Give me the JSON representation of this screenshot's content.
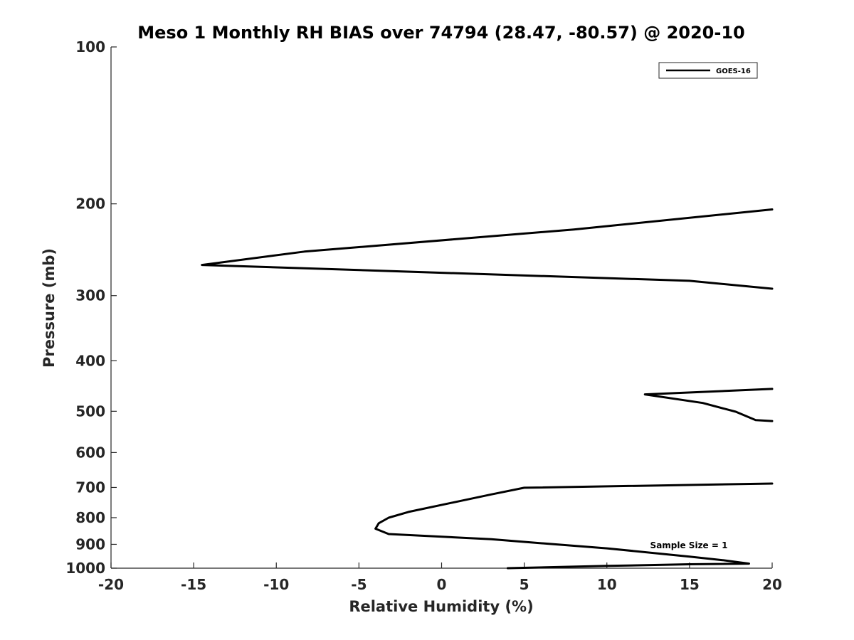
{
  "chart_data": {
    "type": "line",
    "title": "Meso 1 Monthly RH BIAS over 74794 (28.47, -80.57) @ 2020-10",
    "xlabel": "Relative Humidity (%)",
    "ylabel": "Pressure (mb)",
    "xlim": [
      -20,
      20
    ],
    "ylim": [
      100,
      1000
    ],
    "y_scale": "log",
    "y_reversed": true,
    "x_ticks": [
      -20,
      -15,
      -10,
      -5,
      0,
      5,
      10,
      15,
      20
    ],
    "x_tick_labels": [
      "-20",
      "-15",
      "-10",
      "-5",
      "0",
      "5",
      "10",
      "15",
      "20"
    ],
    "y_ticks": [
      100,
      200,
      300,
      400,
      500,
      600,
      700,
      800,
      900,
      1000
    ],
    "y_tick_labels": [
      "100",
      "200",
      "300",
      "400",
      "500",
      "600",
      "700",
      "800",
      "900",
      "1000"
    ],
    "grid": false,
    "legend_position": "top-right",
    "annotation": "Sample Size = 1",
    "color": "#000000",
    "series": [
      {
        "name": "GOES-16",
        "segments": [
          [
            {
              "x": 20,
              "y": 205
            },
            {
              "x": 8,
              "y": 224
            },
            {
              "x": -8.3,
              "y": 247
            },
            {
              "x": -14.5,
              "y": 262
            },
            {
              "x": 15,
              "y": 281
            },
            {
              "x": 20,
              "y": 291
            }
          ],
          [
            {
              "x": 20,
              "y": 453
            },
            {
              "x": 12.3,
              "y": 464
            },
            {
              "x": 15.8,
              "y": 482
            },
            {
              "x": 17.8,
              "y": 501
            },
            {
              "x": 19,
              "y": 520
            },
            {
              "x": 20,
              "y": 522
            }
          ],
          [
            {
              "x": 20,
              "y": 688
            },
            {
              "x": 5,
              "y": 701
            },
            {
              "x": 3,
              "y": 722
            },
            {
              "x": -2,
              "y": 780
            },
            {
              "x": -3.2,
              "y": 800
            },
            {
              "x": -3.8,
              "y": 820
            },
            {
              "x": -4,
              "y": 840
            },
            {
              "x": -3.2,
              "y": 860
            },
            {
              "x": 3,
              "y": 880
            },
            {
              "x": 6.5,
              "y": 898
            },
            {
              "x": 10,
              "y": 916
            },
            {
              "x": 15,
              "y": 950
            },
            {
              "x": 17,
              "y": 965
            },
            {
              "x": 18.6,
              "y": 980
            },
            {
              "x": 15,
              "y": 983
            },
            {
              "x": 10,
              "y": 990
            },
            {
              "x": 4,
              "y": 1000
            }
          ]
        ]
      }
    ]
  }
}
